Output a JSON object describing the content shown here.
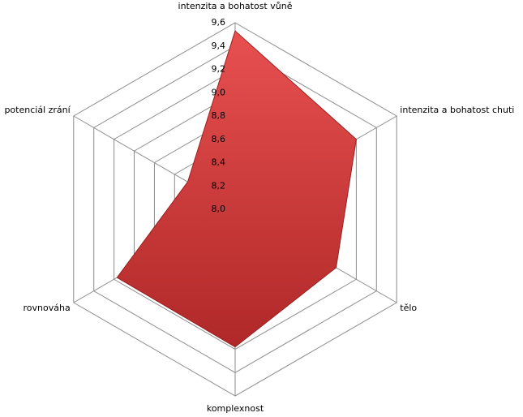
{
  "chart_data": {
    "type": "radar",
    "categories": [
      "intenzita a bohatost vůně",
      "intenzita a bohatost chuti",
      "tělo",
      "komplexnost",
      "rovnováha",
      "potenciál zrání"
    ],
    "series": [
      {
        "color": "#d03a3a",
        "values": [
          9.53,
          9.2,
          9.0,
          9.18,
          9.17,
          8.47
        ]
      }
    ],
    "ylim": [
      8.0,
      9.6
    ],
    "yticks": [
      {
        "value": 8.0,
        "label": "8,0"
      },
      {
        "value": 8.2,
        "label": "8,2"
      },
      {
        "value": 8.4,
        "label": "8,4"
      },
      {
        "value": 8.6,
        "label": "8,6"
      },
      {
        "value": 8.8,
        "label": "8,8"
      },
      {
        "value": 9.0,
        "label": "9,0"
      },
      {
        "value": 9.2,
        "label": "9,2"
      },
      {
        "value": 9.4,
        "label": "9,4"
      },
      {
        "value": 9.6,
        "label": "9,6"
      }
    ],
    "grid": true
  }
}
